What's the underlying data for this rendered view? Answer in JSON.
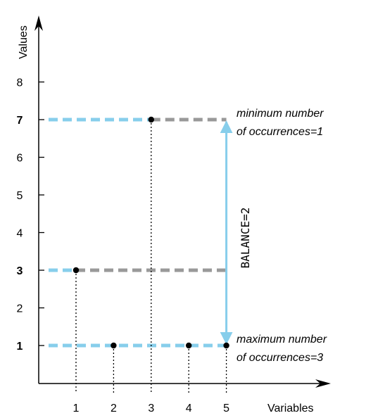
{
  "axes": {
    "y_title": "Values",
    "x_title": "Variables",
    "y_ticks": [
      {
        "value": 1,
        "label": "1",
        "bold": true
      },
      {
        "value": 2,
        "label": "2",
        "bold": false
      },
      {
        "value": 3,
        "label": "3",
        "bold": true
      },
      {
        "value": 4,
        "label": "4",
        "bold": false
      },
      {
        "value": 5,
        "label": "5",
        "bold": false
      },
      {
        "value": 6,
        "label": "6",
        "bold": false
      },
      {
        "value": 7,
        "label": "7",
        "bold": true
      },
      {
        "value": 8,
        "label": "8",
        "bold": false
      }
    ],
    "x_ticks": [
      {
        "value": 1,
        "label": "1"
      },
      {
        "value": 2,
        "label": "2"
      },
      {
        "value": 3,
        "label": "3"
      },
      {
        "value": 4,
        "label": "4"
      },
      {
        "value": 5,
        "label": "5"
      }
    ]
  },
  "points": [
    {
      "variable": 1,
      "value": 3
    },
    {
      "variable": 2,
      "value": 1
    },
    {
      "variable": 3,
      "value": 7
    },
    {
      "variable": 4,
      "value": 1
    },
    {
      "variable": 5,
      "value": 1
    }
  ],
  "levels": [
    {
      "value": 7,
      "kind": "minimum"
    },
    {
      "value": 3,
      "kind": "other"
    },
    {
      "value": 1,
      "kind": "maximum"
    }
  ],
  "annotations": {
    "min_line1": "minimum number",
    "min_line2": "of occurrences=1",
    "max_line1": "maximum number",
    "max_line2": "of occurrences=3",
    "balance": "BALANCE=2"
  },
  "colors": {
    "blue": "#87ceeb",
    "gray": "#999999",
    "black": "#000000"
  }
}
